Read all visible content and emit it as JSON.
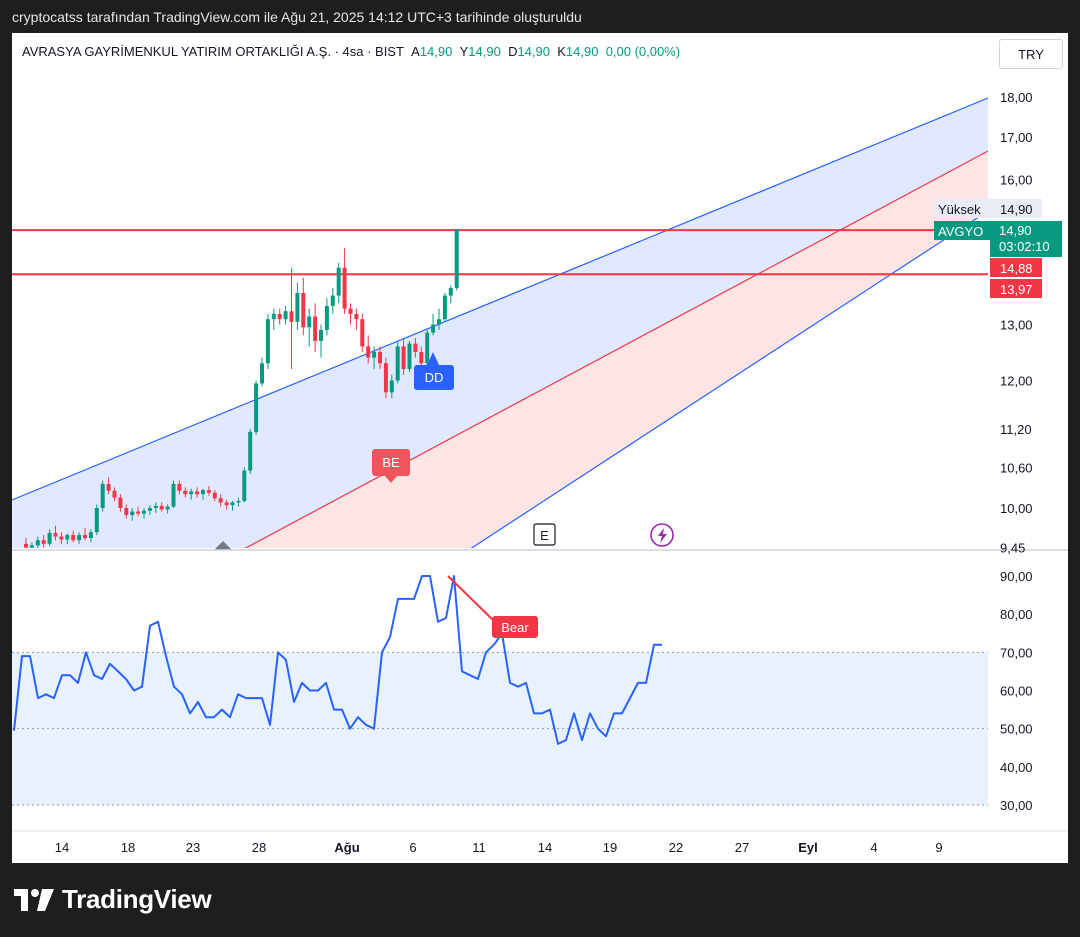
{
  "caption": "cryptocatss tarafından TradingView.com ile Ağu 21, 2025 14:12 UTC+3 tarihinde oluşturuldu",
  "legend": {
    "symbol": "AVRASYA GAYRİMENKUL YATIRIM ORTAKLIĞI A.Ş. · 4sa · BIST",
    "o_key": "A",
    "o_val": "14,90",
    "h_key": "Y",
    "h_val": "14,90",
    "l_key": "D",
    "l_val": "14,90",
    "c_key": "K",
    "c_val": "14,90",
    "change": "0,00 (0,00%)"
  },
  "currency": "TRY",
  "brand": "TradingView",
  "colors": {
    "up": "#089981",
    "down": "#f23645",
    "channel_blue": "#2962ff",
    "channel_red": "#f23645",
    "rsi_line": "#2962ff"
  },
  "chart_data": [
    {
      "type": "candlestick",
      "title": "AVRASYA GAYRİMENKUL YATIRIM ORTAKLIĞI A.Ş. · 4sa · BIST",
      "scale": "log",
      "ylim": [
        9.45,
        18.5
      ],
      "y_ticks": [
        "18,00",
        "17,00",
        "16,00",
        "13,00",
        "12,00",
        "11,20",
        "10,60",
        "10,00",
        "9,45"
      ],
      "x_ticks": [
        "14",
        "18",
        "23",
        "28",
        "Ağu",
        "6",
        "11",
        "14",
        "19",
        "22",
        "27",
        "Eyl",
        "4",
        "9"
      ],
      "price_tags": [
        {
          "label": "Yüksek",
          "value": "14,90"
        },
        {
          "label": "AVGYO",
          "value": "14,90",
          "countdown": "03:02:10"
        },
        {
          "label": "",
          "value": "14,88"
        },
        {
          "label": "",
          "value": "13,97"
        }
      ],
      "horizontal_lines": [
        14.88,
        13.97
      ],
      "markers": [
        "BE",
        "DD",
        "E"
      ],
      "candles": [
        [
          9.5,
          9.58,
          9.4,
          9.45
        ],
        [
          9.45,
          9.52,
          9.38,
          9.48
        ],
        [
          9.48,
          9.6,
          9.42,
          9.55
        ],
        [
          9.55,
          9.62,
          9.45,
          9.5
        ],
        [
          9.5,
          9.7,
          9.47,
          9.65
        ],
        [
          9.65,
          9.75,
          9.55,
          9.6
        ],
        [
          9.6,
          9.66,
          9.5,
          9.56
        ],
        [
          9.56,
          9.64,
          9.5,
          9.62
        ],
        [
          9.62,
          9.68,
          9.52,
          9.55
        ],
        [
          9.55,
          9.66,
          9.5,
          9.62
        ],
        [
          9.62,
          9.72,
          9.55,
          9.58
        ],
        [
          9.58,
          9.7,
          9.52,
          9.66
        ],
        [
          9.66,
          10.05,
          9.62,
          10.0
        ],
        [
          10.0,
          10.4,
          9.95,
          10.35
        ],
        [
          10.35,
          10.45,
          10.2,
          10.25
        ],
        [
          10.25,
          10.3,
          10.1,
          10.15
        ],
        [
          10.15,
          10.2,
          9.95,
          10.0
        ],
        [
          10.0,
          10.05,
          9.85,
          9.9
        ],
        [
          9.9,
          10.0,
          9.82,
          9.95
        ],
        [
          9.95,
          10.02,
          9.88,
          9.92
        ],
        [
          9.92,
          10.0,
          9.85,
          9.96
        ],
        [
          9.96,
          10.04,
          9.9,
          10.0
        ],
        [
          10.0,
          10.08,
          9.93,
          10.03
        ],
        [
          10.03,
          10.08,
          9.95,
          9.98
        ],
        [
          9.98,
          10.05,
          9.92,
          10.02
        ],
        [
          10.02,
          10.4,
          10.0,
          10.35
        ],
        [
          10.35,
          10.4,
          10.2,
          10.25
        ],
        [
          10.25,
          10.3,
          10.15,
          10.2
        ],
        [
          10.2,
          10.28,
          10.12,
          10.24
        ],
        [
          10.24,
          10.3,
          10.15,
          10.2
        ],
        [
          10.2,
          10.28,
          10.12,
          10.26
        ],
        [
          10.26,
          10.32,
          10.18,
          10.22
        ],
        [
          10.22,
          10.26,
          10.1,
          10.14
        ],
        [
          10.14,
          10.2,
          10.02,
          10.08
        ],
        [
          10.08,
          10.12,
          9.98,
          10.04
        ],
        [
          10.04,
          10.1,
          9.96,
          10.08
        ],
        [
          10.08,
          10.15,
          10.02,
          10.1
        ],
        [
          10.1,
          10.6,
          10.08,
          10.55
        ],
        [
          10.55,
          11.2,
          10.5,
          11.15
        ],
        [
          11.15,
          12.0,
          11.1,
          11.95
        ],
        [
          11.95,
          12.4,
          11.9,
          12.3
        ],
        [
          12.3,
          13.2,
          12.2,
          13.1
        ],
        [
          13.1,
          13.3,
          12.9,
          13.2
        ],
        [
          13.2,
          13.3,
          13.0,
          13.1
        ],
        [
          13.1,
          13.35,
          13.0,
          13.25
        ],
        [
          13.25,
          14.1,
          12.2,
          13.05
        ],
        [
          13.05,
          13.8,
          12.9,
          13.6
        ],
        [
          13.6,
          13.9,
          12.8,
          12.95
        ],
        [
          12.95,
          13.3,
          12.6,
          13.15
        ],
        [
          13.15,
          13.4,
          12.5,
          12.7
        ],
        [
          12.7,
          13.0,
          12.4,
          12.9
        ],
        [
          12.9,
          13.5,
          12.8,
          13.35
        ],
        [
          13.35,
          13.7,
          13.2,
          13.55
        ],
        [
          13.55,
          14.2,
          13.4,
          14.1
        ],
        [
          14.1,
          14.5,
          13.2,
          13.3
        ],
        [
          13.3,
          13.4,
          13.0,
          13.2
        ],
        [
          13.2,
          13.3,
          12.9,
          13.1
        ],
        [
          13.1,
          13.2,
          12.5,
          12.6
        ],
        [
          12.6,
          12.8,
          12.3,
          12.4
        ],
        [
          12.4,
          12.6,
          12.2,
          12.5
        ],
        [
          12.5,
          12.6,
          12.2,
          12.3
        ],
        [
          12.3,
          12.4,
          11.7,
          11.8
        ],
        [
          11.8,
          12.1,
          11.7,
          12.0
        ],
        [
          12.0,
          12.7,
          11.95,
          12.6
        ],
        [
          12.6,
          12.75,
          12.1,
          12.2
        ],
        [
          12.2,
          12.7,
          12.15,
          12.65
        ],
        [
          12.65,
          12.75,
          12.4,
          12.5
        ],
        [
          12.5,
          12.6,
          12.2,
          12.3
        ],
        [
          12.3,
          12.9,
          12.25,
          12.85
        ],
        [
          12.85,
          13.2,
          12.8,
          13.0
        ],
        [
          13.0,
          13.3,
          12.9,
          13.1
        ],
        [
          13.1,
          13.6,
          13.05,
          13.55
        ],
        [
          13.55,
          13.75,
          13.4,
          13.7
        ],
        [
          13.7,
          14.9,
          13.65,
          14.9
        ]
      ]
    },
    {
      "type": "line",
      "title": "RSI",
      "ylim": [
        30,
        90
      ],
      "y_ticks": [
        "90,00",
        "80,00",
        "70,00",
        "60,00",
        "50,00",
        "40,00",
        "30,00"
      ],
      "band": [
        30,
        70
      ],
      "divergence_label": "Bear",
      "values": [
        49.5,
        69,
        69,
        58,
        59,
        58,
        64,
        64,
        62,
        70,
        64,
        63,
        67,
        65,
        63,
        60,
        61,
        77,
        78,
        69,
        61,
        59,
        54,
        57,
        53,
        53,
        55,
        53,
        59,
        58,
        58,
        58,
        51,
        70,
        68,
        57,
        62,
        60,
        60,
        62,
        55,
        55,
        50,
        53,
        51,
        50,
        70,
        74,
        84,
        84,
        84,
        90,
        90,
        78,
        79,
        90,
        65,
        64,
        63,
        70,
        72,
        75,
        62,
        61,
        62,
        54,
        54,
        55,
        46,
        47,
        54,
        47,
        54,
        50,
        48,
        54,
        54,
        58,
        62,
        62,
        72,
        72
      ]
    }
  ]
}
